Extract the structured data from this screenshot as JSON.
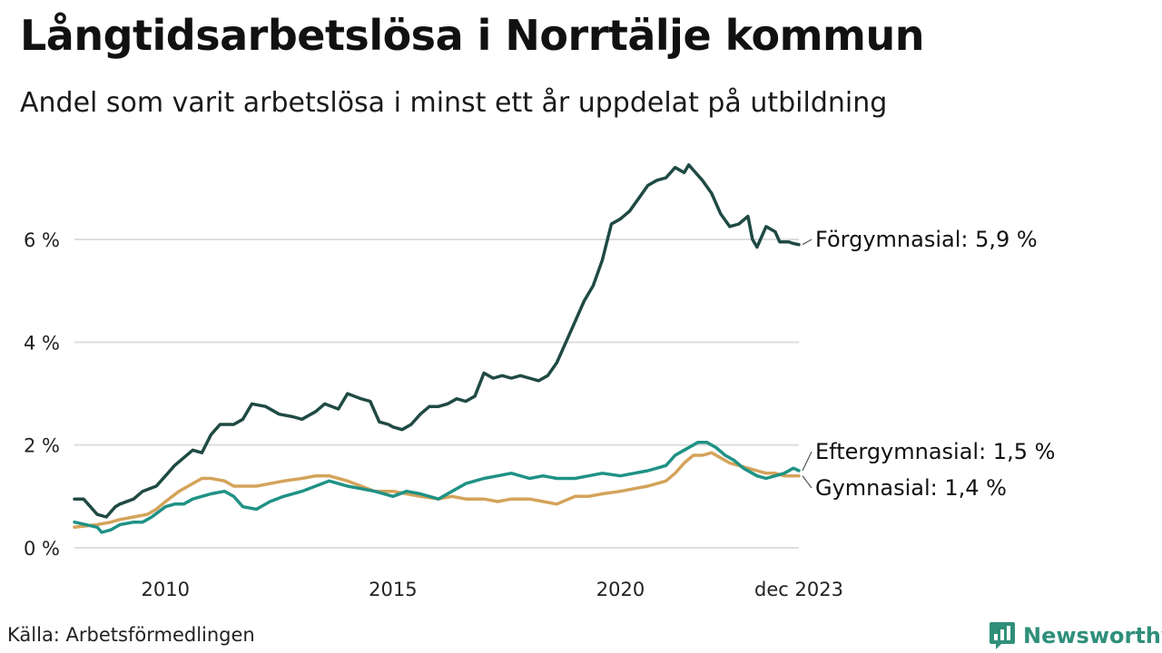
{
  "header": {
    "title": "Långtidsarbetslösa i Norrtälje kommun",
    "subtitle": "Andel som varit arbetslösa i minst ett år uppdelat på utbildning"
  },
  "footer": {
    "source": "Källa: Arbetsförmedlingen",
    "brand": "Newsworthy"
  },
  "chart_data": {
    "type": "line",
    "title": "Långtidsarbetslösa i Norrtälje kommun",
    "subtitle": "Andel som varit arbetslösa i minst ett år uppdelat på utbildning",
    "xlabel": "",
    "ylabel": "",
    "xlim": [
      2008.0,
      2023.92
    ],
    "ylim": [
      0,
      7.6
    ],
    "grid": true,
    "y_ticks": [
      {
        "value": 0,
        "label": "0 %"
      },
      {
        "value": 2,
        "label": "2 %"
      },
      {
        "value": 4,
        "label": "4 %"
      },
      {
        "value": 6,
        "label": "6 %"
      }
    ],
    "x_ticks": [
      {
        "value": 2010,
        "label": "2010"
      },
      {
        "value": 2015,
        "label": "2015"
      },
      {
        "value": 2020,
        "label": "2020"
      },
      {
        "value": 2023.92,
        "label": "dec 2023"
      }
    ],
    "series": [
      {
        "name": "Förgymnasial",
        "end_label": "Förgymnasial: 5,9 %",
        "color": "#1f4a44",
        "x": [
          2008.0,
          2008.2,
          2008.5,
          2008.7,
          2008.9,
          2009.0,
          2009.3,
          2009.5,
          2009.8,
          2010.0,
          2010.2,
          2010.4,
          2010.6,
          2010.8,
          2011.0,
          2011.2,
          2011.5,
          2011.7,
          2011.9,
          2012.2,
          2012.5,
          2012.8,
          2013.0,
          2013.3,
          2013.5,
          2013.8,
          2014.0,
          2014.3,
          2014.5,
          2014.7,
          2014.9,
          2015.0,
          2015.2,
          2015.4,
          2015.6,
          2015.8,
          2016.0,
          2016.2,
          2016.4,
          2016.6,
          2016.8,
          2017.0,
          2017.2,
          2017.4,
          2017.6,
          2017.8,
          2018.0,
          2018.2,
          2018.4,
          2018.6,
          2018.8,
          2019.0,
          2019.2,
          2019.4,
          2019.6,
          2019.8,
          2020.0,
          2020.2,
          2020.4,
          2020.6,
          2020.8,
          2021.0,
          2021.2,
          2021.4,
          2021.5,
          2021.6,
          2021.8,
          2022.0,
          2022.2,
          2022.4,
          2022.6,
          2022.8,
          2022.9,
          2023.0,
          2023.2,
          2023.4,
          2023.5,
          2023.7,
          2023.8,
          2023.92
        ],
        "values": [
          0.95,
          0.95,
          0.65,
          0.6,
          0.8,
          0.85,
          0.95,
          1.1,
          1.2,
          1.4,
          1.6,
          1.75,
          1.9,
          1.85,
          2.2,
          2.4,
          2.4,
          2.5,
          2.8,
          2.75,
          2.6,
          2.55,
          2.5,
          2.65,
          2.8,
          2.7,
          3.0,
          2.9,
          2.85,
          2.45,
          2.4,
          2.35,
          2.3,
          2.4,
          2.6,
          2.75,
          2.75,
          2.8,
          2.9,
          2.85,
          2.95,
          3.4,
          3.3,
          3.35,
          3.3,
          3.35,
          3.3,
          3.25,
          3.35,
          3.6,
          4.0,
          4.4,
          4.8,
          5.1,
          5.6,
          6.3,
          6.4,
          6.55,
          6.8,
          7.05,
          7.15,
          7.2,
          7.4,
          7.3,
          7.45,
          7.35,
          7.15,
          6.9,
          6.5,
          6.25,
          6.3,
          6.45,
          6.0,
          5.85,
          6.25,
          6.15,
          5.95,
          5.95,
          5.92,
          5.9
        ]
      },
      {
        "name": "Eftergymnasial",
        "end_label": "Eftergymnasial: 1,5 %",
        "color": "#1f9285",
        "x": [
          2008.0,
          2008.5,
          2008.6,
          2008.8,
          2009.0,
          2009.3,
          2009.5,
          2009.7,
          2010.0,
          2010.2,
          2010.4,
          2010.6,
          2010.8,
          2011.0,
          2011.3,
          2011.5,
          2011.7,
          2012.0,
          2012.3,
          2012.6,
          2013.0,
          2013.3,
          2013.6,
          2014.0,
          2014.3,
          2014.6,
          2015.0,
          2015.3,
          2015.6,
          2016.0,
          2016.3,
          2016.6,
          2017.0,
          2017.3,
          2017.6,
          2018.0,
          2018.3,
          2018.6,
          2019.0,
          2019.3,
          2019.6,
          2020.0,
          2020.3,
          2020.6,
          2020.8,
          2021.0,
          2021.2,
          2021.4,
          2021.6,
          2021.7,
          2021.9,
          2022.1,
          2022.3,
          2022.5,
          2022.7,
          2023.0,
          2023.2,
          2023.4,
          2023.6,
          2023.8,
          2023.92
        ],
        "values": [
          0.5,
          0.4,
          0.3,
          0.35,
          0.45,
          0.5,
          0.5,
          0.6,
          0.8,
          0.85,
          0.85,
          0.95,
          1.0,
          1.05,
          1.1,
          1.0,
          0.8,
          0.75,
          0.9,
          1.0,
          1.1,
          1.2,
          1.3,
          1.2,
          1.15,
          1.1,
          1.0,
          1.1,
          1.05,
          0.95,
          1.1,
          1.25,
          1.35,
          1.4,
          1.45,
          1.35,
          1.4,
          1.35,
          1.35,
          1.4,
          1.45,
          1.4,
          1.45,
          1.5,
          1.55,
          1.6,
          1.8,
          1.9,
          2.0,
          2.05,
          2.05,
          1.95,
          1.8,
          1.7,
          1.55,
          1.4,
          1.35,
          1.4,
          1.45,
          1.55,
          1.5
        ]
      },
      {
        "name": "Gymnasial",
        "end_label": "Gymnasial: 1,4 %",
        "color": "#d4a35a",
        "x": [
          2008.0,
          2008.5,
          2008.8,
          2009.0,
          2009.3,
          2009.6,
          2009.8,
          2010.0,
          2010.3,
          2010.5,
          2010.8,
          2011.0,
          2011.3,
          2011.5,
          2011.8,
          2012.0,
          2012.3,
          2012.6,
          2013.0,
          2013.3,
          2013.6,
          2014.0,
          2014.3,
          2014.6,
          2015.0,
          2015.3,
          2015.6,
          2016.0,
          2016.3,
          2016.6,
          2017.0,
          2017.3,
          2017.6,
          2018.0,
          2018.3,
          2018.6,
          2019.0,
          2019.3,
          2019.6,
          2020.0,
          2020.3,
          2020.6,
          2020.8,
          2021.0,
          2021.2,
          2021.4,
          2021.6,
          2021.8,
          2022.0,
          2022.2,
          2022.4,
          2022.6,
          2022.8,
          2023.0,
          2023.2,
          2023.4,
          2023.6,
          2023.8,
          2023.92
        ],
        "values": [
          0.4,
          0.45,
          0.5,
          0.55,
          0.6,
          0.65,
          0.75,
          0.9,
          1.1,
          1.2,
          1.35,
          1.35,
          1.3,
          1.2,
          1.2,
          1.2,
          1.25,
          1.3,
          1.35,
          1.4,
          1.4,
          1.3,
          1.2,
          1.1,
          1.1,
          1.05,
          1.0,
          0.95,
          1.0,
          0.95,
          0.95,
          0.9,
          0.95,
          0.95,
          0.9,
          0.85,
          1.0,
          1.0,
          1.05,
          1.1,
          1.15,
          1.2,
          1.25,
          1.3,
          1.45,
          1.65,
          1.8,
          1.8,
          1.85,
          1.75,
          1.65,
          1.6,
          1.55,
          1.5,
          1.45,
          1.45,
          1.4,
          1.4,
          1.4
        ]
      }
    ]
  }
}
